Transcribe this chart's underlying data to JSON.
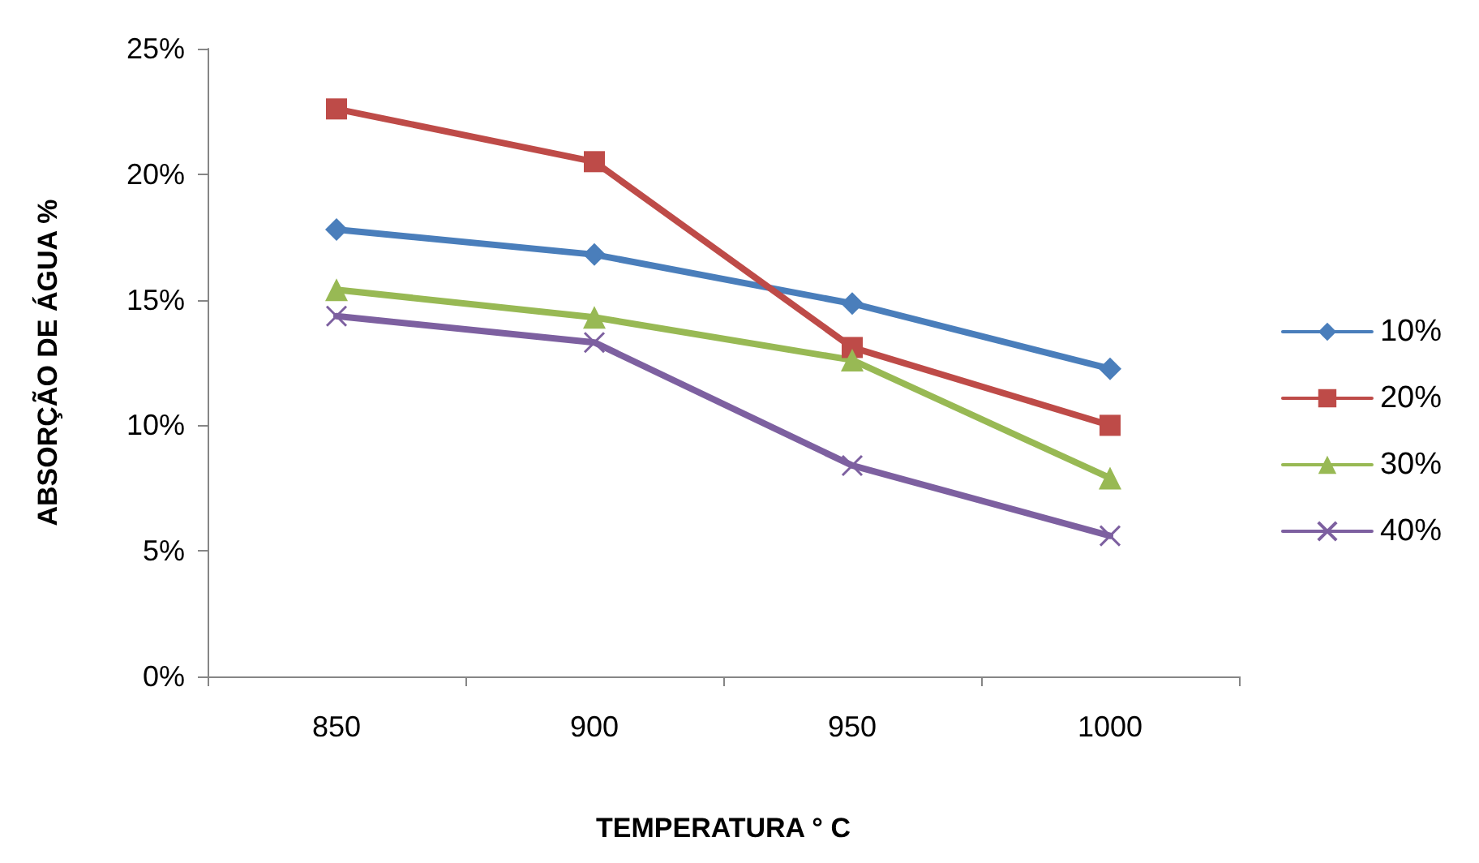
{
  "chart_data": {
    "type": "line",
    "xlabel": "TEMPERATURA ° C",
    "ylabel": "ABSORÇÃO DE ÁGUA %",
    "categories": [
      "850",
      "900",
      "950",
      "1000"
    ],
    "series": [
      {
        "name": "10%",
        "color": "#4a7ebb",
        "marker": "diamond",
        "values": [
          17.8,
          16.8,
          14.85,
          12.25
        ]
      },
      {
        "name": "20%",
        "color": "#be4b48",
        "marker": "square",
        "values": [
          22.6,
          20.5,
          13.1,
          10.0
        ]
      },
      {
        "name": "30%",
        "color": "#98b954",
        "marker": "triangle",
        "values": [
          15.4,
          14.3,
          12.6,
          7.9
        ]
      },
      {
        "name": "40%",
        "color": "#7d60a0",
        "marker": "cross",
        "values": [
          14.35,
          13.3,
          8.4,
          5.6
        ]
      }
    ],
    "ylim": [
      0,
      25
    ],
    "yticks": [
      {
        "value": 0,
        "label": "0%"
      },
      {
        "value": 5,
        "label": "5%"
      },
      {
        "value": 10,
        "label": "10%"
      },
      {
        "value": 15,
        "label": "15%"
      },
      {
        "value": 20,
        "label": "20%"
      },
      {
        "value": 25,
        "label": "25%"
      }
    ],
    "grid": false,
    "legend": "right"
  }
}
